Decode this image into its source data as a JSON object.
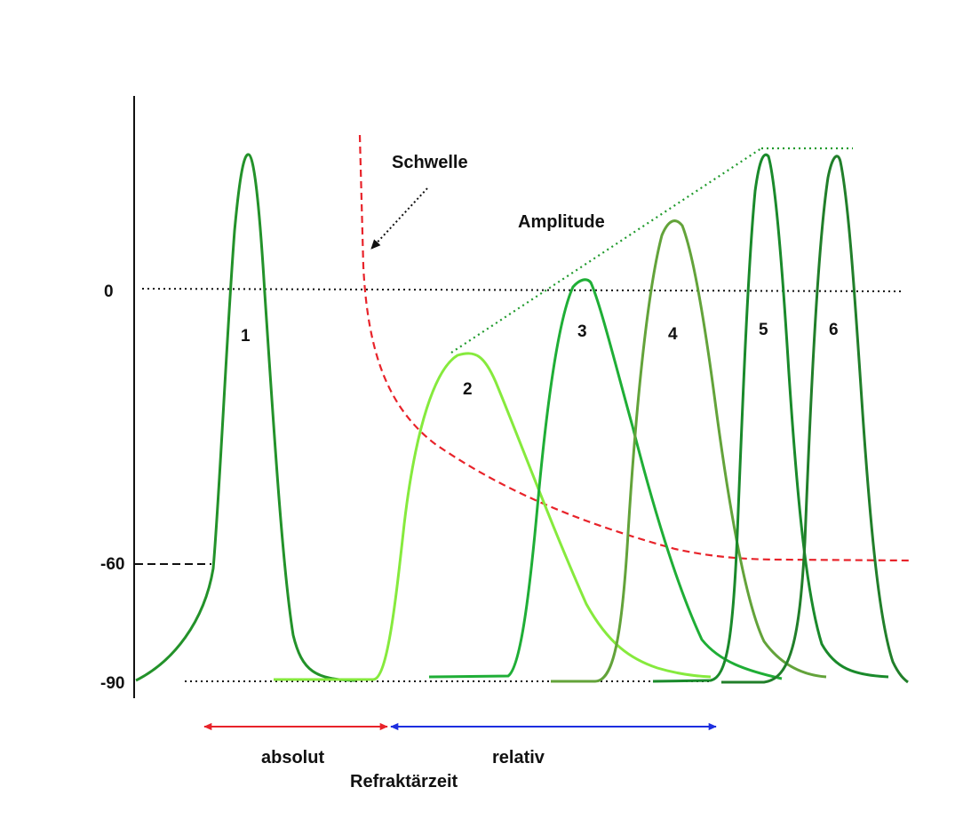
{
  "axis": {
    "ticks": [
      "0",
      "-60",
      "-90"
    ]
  },
  "annotations": {
    "threshold": "Schwelle",
    "amplitude": "Amplitude"
  },
  "spikes": [
    {
      "label": "1",
      "color": "#23922a"
    },
    {
      "label": "2",
      "color": "#86ea3d"
    },
    {
      "label": "3",
      "color": "#1fae36"
    },
    {
      "label": "4",
      "color": "#63a33a"
    },
    {
      "label": "5",
      "color": "#1a8a2b"
    },
    {
      "label": "6",
      "color": "#217f2a"
    }
  ],
  "refractory": {
    "absolute": "absolut",
    "relative": "relativ",
    "title": "Refraktärzeit",
    "absolute_color": "#e8232a",
    "relative_color": "#1d2fe0"
  },
  "colors": {
    "threshold_curve": "#e8232a",
    "axis": "#111111",
    "dotted_lines": "#111111",
    "amplitude_line": "#1f9a2c"
  }
}
